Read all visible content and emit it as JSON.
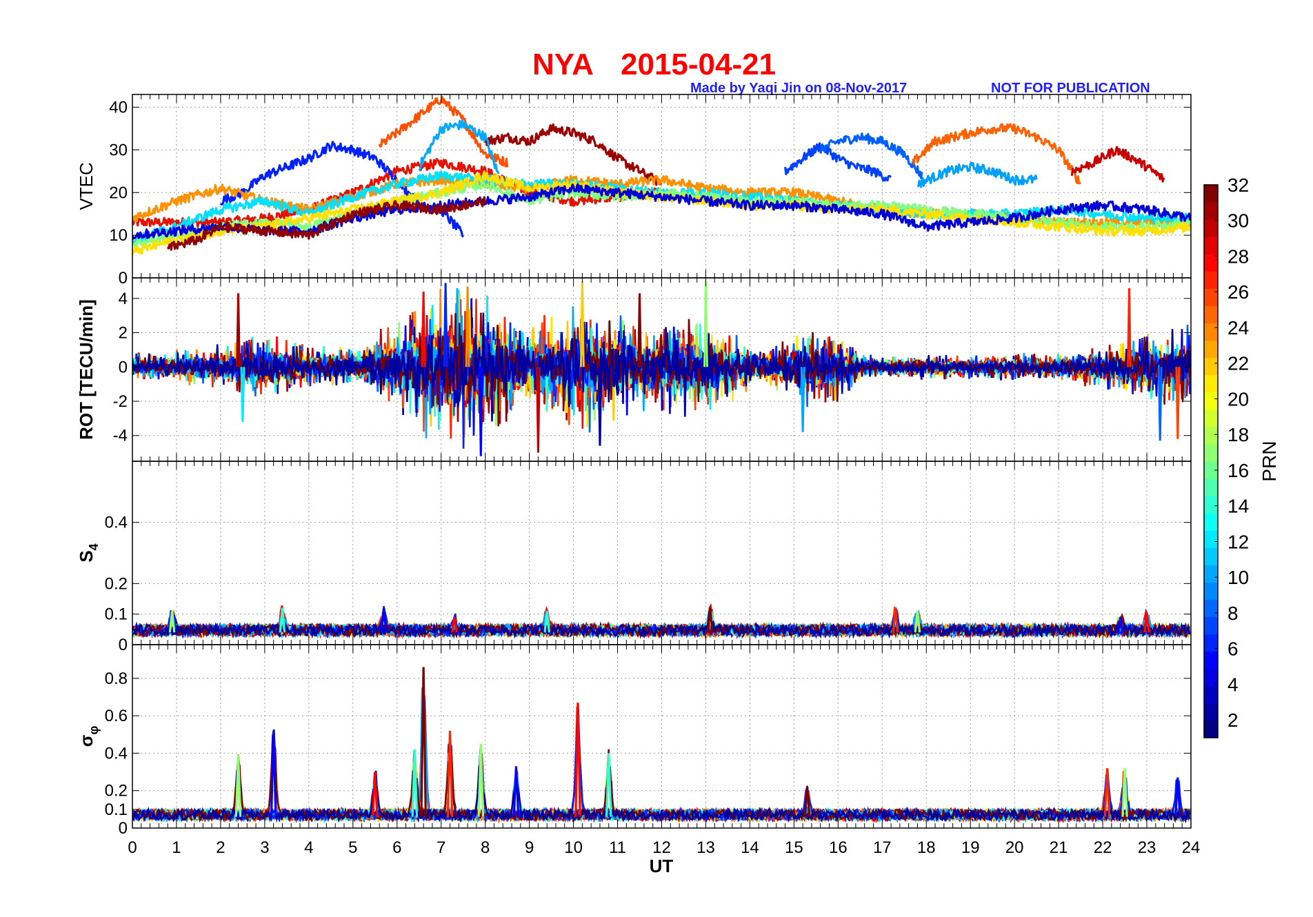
{
  "chart_data": {
    "type": "line",
    "title_station": "NYA",
    "title_date": "2015-04-21",
    "credit_left": "Made by Yaqi Jin on 08-Nov-2017",
    "credit_right": "NOT FOR PUBLICATION",
    "xlabel": "UT",
    "xlim": [
      0,
      24
    ],
    "x_ticks": [
      0,
      1,
      2,
      3,
      4,
      5,
      6,
      7,
      8,
      9,
      10,
      11,
      12,
      13,
      14,
      15,
      16,
      17,
      18,
      19,
      20,
      21,
      22,
      23,
      24
    ],
    "grid": true,
    "colorbar": {
      "label": "PRN",
      "range": [
        1,
        32
      ],
      "ticks": [
        2,
        4,
        6,
        8,
        10,
        12,
        14,
        16,
        18,
        20,
        22,
        24,
        26,
        28,
        30,
        32
      ],
      "colormap": "jet",
      "position": "right"
    },
    "panels": [
      {
        "id": "vtec",
        "ylabel": "VTEC",
        "ylim": [
          0,
          43
        ],
        "y_ticks": [
          0,
          10,
          20,
          30,
          40
        ],
        "series": [
          {
            "prn": 31,
            "color": "#e81000",
            "x": [
              0,
              1,
              2,
              3,
              4,
              5,
              6,
              7,
              8,
              9,
              10,
              11,
              12
            ],
            "y": [
              13,
              13,
              13,
              14,
              16,
              20,
              25,
              27,
              25,
              20,
              18,
              19,
              20
            ]
          },
          {
            "prn": 27,
            "color": "#ff5000",
            "x": [
              5.6,
              6,
              6.5,
              7,
              7.5,
              8,
              8.5
            ],
            "y": [
              31,
              34,
              38,
              42,
              37,
              29,
              27
            ]
          },
          {
            "prn": 32,
            "color": "#9c0000",
            "x": [
              8,
              8.5,
              9,
              9.5,
              10,
              10.5,
              11,
              11.5,
              12
            ],
            "y": [
              32,
              33,
              32,
              35,
              34,
              32,
              28,
              25,
              22
            ]
          },
          {
            "prn": 10,
            "color": "#00a8ff",
            "x": [
              6.5,
              7,
              7.5,
              8,
              8.3
            ],
            "y": [
              26,
              35,
              36,
              33,
              24
            ]
          },
          {
            "prn": 5,
            "color": "#0020ff",
            "x": [
              2,
              2.5,
              3,
              3.5,
              4,
              4.5,
              5,
              5.5,
              6,
              6.5,
              7,
              7.5
            ],
            "y": [
              18,
              20,
              24,
              26,
              28,
              31,
              30,
              28,
              23,
              17,
              16,
              10
            ]
          },
          {
            "prn": 6,
            "color": "#0040ff",
            "x": [
              14.8,
              15.2,
              15.6,
              16,
              16.4,
              16.8,
              17.2
            ],
            "y": [
              25,
              28,
              31,
              28,
              26,
              25,
              23
            ]
          },
          {
            "prn": 7,
            "color": "#0060ff",
            "x": [
              15.6,
              16,
              16.5,
              17,
              17.5,
              17.9
            ],
            "y": [
              30,
              32,
              33,
              32,
              29,
              24
            ]
          },
          {
            "prn": 10,
            "color": "#00a0ff",
            "x": [
              17.8,
              18.5,
              19,
              19.5,
              20,
              20.5
            ],
            "y": [
              22,
              25,
              26,
              25,
              23,
              23
            ]
          },
          {
            "prn": 26,
            "color": "#ff6000",
            "x": [
              17.7,
              18.2,
              19,
              19.5,
              20,
              20.5,
              21,
              21.5
            ],
            "y": [
              27,
              32,
              34,
              35,
              35,
              33,
              30,
              22
            ]
          },
          {
            "prn": 29,
            "color": "#c80000",
            "x": [
              21.3,
              21.8,
              22.3,
              22.7,
              23,
              23.4
            ],
            "y": [
              25,
              27,
              30,
              28,
              26,
              23
            ]
          },
          {
            "prn": 24,
            "color": "#ff9000",
            "x": [
              0,
              1,
              2,
              3,
              4,
              5,
              6,
              7,
              8,
              9,
              10,
              11,
              12,
              13,
              14,
              15,
              16,
              17,
              18,
              19,
              20,
              21,
              22,
              23,
              24
            ],
            "y": [
              14,
              18,
              21,
              18,
              16,
              19,
              22,
              23,
              22,
              21,
              23,
              22,
              23,
              21,
              20,
              20,
              18,
              16,
              15,
              15,
              14,
              13,
              13,
              13,
              13
            ]
          },
          {
            "prn": 12,
            "color": "#00e0ff",
            "x": [
              0,
              1,
              2,
              3,
              4,
              5,
              6,
              7,
              8,
              9,
              10,
              11,
              12,
              13,
              14,
              15,
              16,
              17,
              18,
              19,
              20,
              21,
              22,
              23,
              24
            ],
            "y": [
              9,
              12,
              16,
              18,
              15,
              19,
              22,
              24,
              23,
              22,
              22,
              21,
              20,
              20,
              19,
              18,
              17,
              16,
              15,
              15,
              15,
              16,
              15,
              14,
              14
            ]
          },
          {
            "prn": 17,
            "color": "#80ff80",
            "x": [
              0,
              1,
              2,
              3,
              4,
              5,
              6,
              7,
              8,
              9,
              10,
              11,
              12,
              13,
              14,
              15,
              16,
              17,
              18,
              19,
              20,
              21,
              22,
              23,
              24
            ],
            "y": [
              8,
              10,
              12,
              13,
              12,
              15,
              18,
              20,
              22,
              18,
              20,
              19,
              20,
              19,
              18,
              18,
              17,
              17,
              16,
              15,
              14,
              13,
              12,
              12,
              13
            ]
          },
          {
            "prn": 21,
            "color": "#ffe000",
            "x": [
              0,
              1,
              2,
              3,
              4,
              5,
              6,
              7,
              8,
              9,
              10,
              11,
              12,
              13,
              14,
              15,
              16,
              17,
              18,
              19,
              20,
              21,
              22,
              23,
              24
            ],
            "y": [
              6,
              9,
              11,
              12,
              14,
              16,
              18,
              20,
              24,
              21,
              22,
              20,
              19,
              18,
              17,
              17,
              16,
              16,
              15,
              14,
              13,
              12,
              11,
              11,
              12
            ]
          },
          {
            "prn": 3,
            "color": "#0000d8",
            "x": [
              0,
              1,
              2,
              3,
              4,
              5,
              6,
              7,
              8,
              9,
              10,
              11,
              12,
              13,
              14,
              15,
              16,
              17,
              18,
              19,
              20,
              21,
              22,
              23,
              24
            ],
            "y": [
              10,
              11,
              12,
              11,
              11,
              14,
              16,
              17,
              18,
              19,
              21,
              20,
              19,
              18,
              17,
              17,
              16,
              15,
              12,
              13,
              14,
              16,
              17,
              16,
              14
            ]
          },
          {
            "prn": 32,
            "color": "#900000",
            "x": [
              0.8,
              1.5,
              2,
              3,
              4,
              5,
              6,
              7,
              8
            ],
            "y": [
              7,
              9,
              12,
              11,
              10,
              15,
              17,
              16,
              18
            ]
          }
        ]
      },
      {
        "id": "rot",
        "ylabel": "ROT [TECU/min]",
        "ylim": [
          -5.5,
          5.2
        ],
        "y_ticks": [
          -4,
          -2,
          0,
          2,
          4
        ],
        "activity_envelope": {
          "x": [
            0,
            1,
            2,
            3,
            4,
            5,
            5.5,
            6,
            6.5,
            7,
            7.5,
            8,
            8.5,
            9,
            9.5,
            10,
            10.5,
            11,
            11.5,
            12,
            12.5,
            13,
            13.5,
            14,
            14.5,
            15,
            15.5,
            16,
            16.5,
            17,
            18,
            19,
            20,
            21,
            22,
            23,
            24
          ],
          "amplitude": [
            0.8,
            0.9,
            1.2,
            1.8,
            1.2,
            1.0,
            1.8,
            2.5,
            3.5,
            4.2,
            4.5,
            4.0,
            3.0,
            2.5,
            2.8,
            3.2,
            3.5,
            3.0,
            2.2,
            2.5,
            2.8,
            2.8,
            2.0,
            1.2,
            1.2,
            1.8,
            2.2,
            1.8,
            0.8,
            0.6,
            0.7,
            0.7,
            0.7,
            0.8,
            1.2,
            1.8,
            2.2
          ]
        },
        "peaks": [
          {
            "x": 2.4,
            "y": 4.3
          },
          {
            "x": 2.5,
            "y": -3.2
          },
          {
            "x": 6.6,
            "y": 4.4
          },
          {
            "x": 7.1,
            "y": 4.9
          },
          {
            "x": 7.6,
            "y": 4.7
          },
          {
            "x": 7.9,
            "y": -5.2
          },
          {
            "x": 10.2,
            "y": 5.0
          },
          {
            "x": 10.6,
            "y": -4.6
          },
          {
            "x": 13.0,
            "y": 5.0
          },
          {
            "x": 9.2,
            "y": -5.0
          },
          {
            "x": 15.2,
            "y": -3.8
          },
          {
            "x": 22.6,
            "y": 4.6
          },
          {
            "x": 23.3,
            "y": -4.3
          },
          {
            "x": 23.7,
            "y": -4.2
          },
          {
            "x": 11.5,
            "y": 4.3
          }
        ]
      },
      {
        "id": "s4",
        "ylabel": "S",
        "ylabel_sub": "4",
        "ylim": [
          0,
          0.6
        ],
        "y_ticks": [
          0,
          0.1,
          0.2,
          0.4
        ],
        "baseline": 0.04,
        "peaks": [
          {
            "x": 0.9,
            "y": 0.11
          },
          {
            "x": 5.7,
            "y": 0.12
          },
          {
            "x": 7.3,
            "y": 0.09
          },
          {
            "x": 9.4,
            "y": 0.11
          },
          {
            "x": 13.1,
            "y": 0.12
          },
          {
            "x": 17.3,
            "y": 0.12
          },
          {
            "x": 17.8,
            "y": 0.11
          },
          {
            "x": 22.4,
            "y": 0.09
          },
          {
            "x": 23.0,
            "y": 0.1
          },
          {
            "x": 3.4,
            "y": 0.12
          }
        ]
      },
      {
        "id": "sigphi",
        "ylabel": "σ",
        "ylabel_sub": "φ",
        "ylim": [
          0,
          0.98
        ],
        "y_ticks": [
          0,
          0.1,
          0.2,
          0.4,
          0.6,
          0.8
        ],
        "baseline": 0.06,
        "peaks": [
          {
            "x": 2.4,
            "y": 0.39
          },
          {
            "x": 3.2,
            "y": 0.52
          },
          {
            "x": 5.5,
            "y": 0.3
          },
          {
            "x": 6.4,
            "y": 0.42
          },
          {
            "x": 6.6,
            "y": 0.86
          },
          {
            "x": 7.2,
            "y": 0.52
          },
          {
            "x": 7.9,
            "y": 0.45
          },
          {
            "x": 8.7,
            "y": 0.33
          },
          {
            "x": 10.1,
            "y": 0.67
          },
          {
            "x": 10.8,
            "y": 0.4
          },
          {
            "x": 15.3,
            "y": 0.22
          },
          {
            "x": 22.1,
            "y": 0.32
          },
          {
            "x": 22.5,
            "y": 0.32
          },
          {
            "x": 23.7,
            "y": 0.27
          }
        ]
      }
    ]
  }
}
